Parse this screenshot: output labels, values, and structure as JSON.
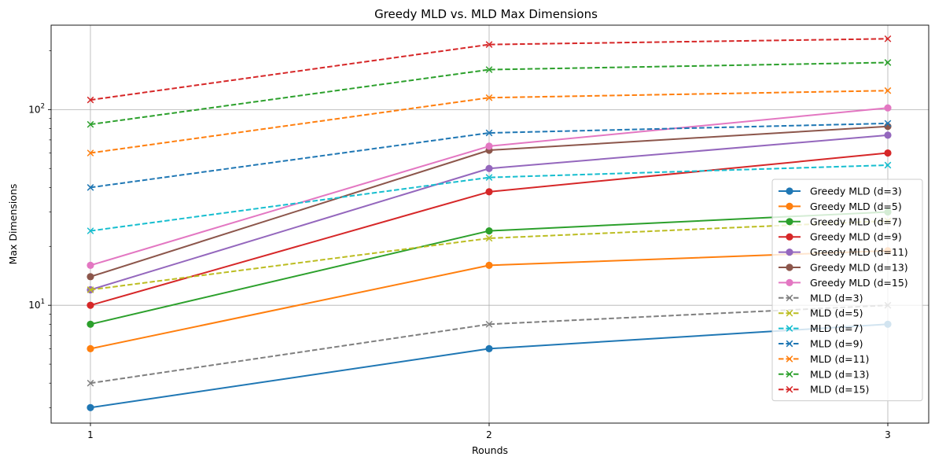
{
  "chart_data": {
    "type": "line",
    "title": "Greedy MLD vs. MLD Max Dimensions",
    "xlabel": "Rounds",
    "ylabel": "Max Dimensions",
    "x": [
      1,
      2,
      3
    ],
    "x_ticks": [
      "1",
      "2",
      "3"
    ],
    "y_scale": "log",
    "ylim": [
      2.5,
      270
    ],
    "y_ticks": [
      {
        "value": 10,
        "base": "10",
        "exp": "1"
      },
      {
        "value": 100,
        "base": "10",
        "exp": "2"
      }
    ],
    "grid": true,
    "legend_position": "right",
    "series": [
      {
        "name": "Greedy MLD (d=3)",
        "color": "#1f77b4",
        "marker": "circle",
        "style": "solid",
        "values": [
          3,
          6,
          8
        ]
      },
      {
        "name": "Greedy MLD (d=5)",
        "color": "#ff7f0e",
        "marker": "circle",
        "style": "solid",
        "values": [
          6,
          16,
          19
        ]
      },
      {
        "name": "Greedy MLD (d=7)",
        "color": "#2ca02c",
        "marker": "circle",
        "style": "solid",
        "values": [
          8,
          24,
          30
        ]
      },
      {
        "name": "Greedy MLD (d=9)",
        "color": "#d62728",
        "marker": "circle",
        "style": "solid",
        "values": [
          10,
          38,
          60
        ]
      },
      {
        "name": "Greedy MLD (d=11)",
        "color": "#9467bd",
        "marker": "circle",
        "style": "solid",
        "values": [
          12,
          50,
          74
        ]
      },
      {
        "name": "Greedy MLD (d=13)",
        "color": "#8c564b",
        "marker": "circle",
        "style": "solid",
        "values": [
          14,
          62,
          82
        ]
      },
      {
        "name": "Greedy MLD (d=15)",
        "color": "#e377c2",
        "marker": "circle",
        "style": "solid",
        "values": [
          16,
          65,
          102
        ]
      },
      {
        "name": "MLD (d=3)",
        "color": "#7f7f7f",
        "marker": "x",
        "style": "dashed",
        "values": [
          4,
          8,
          10
        ]
      },
      {
        "name": "MLD (d=5)",
        "color": "#bcbd22",
        "marker": "x",
        "style": "dashed",
        "values": [
          12,
          22,
          27
        ]
      },
      {
        "name": "MLD (d=7)",
        "color": "#17becf",
        "marker": "x",
        "style": "dashed",
        "values": [
          24,
          45,
          52
        ]
      },
      {
        "name": "MLD (d=9)",
        "color": "#1f77b4",
        "marker": "x",
        "style": "dashed",
        "values": [
          40,
          76,
          85
        ]
      },
      {
        "name": "MLD (d=11)",
        "color": "#ff7f0e",
        "marker": "x",
        "style": "dashed",
        "values": [
          60,
          115,
          125
        ]
      },
      {
        "name": "MLD (d=13)",
        "color": "#2ca02c",
        "marker": "x",
        "style": "dashed",
        "values": [
          84,
          160,
          174
        ]
      },
      {
        "name": "MLD (d=15)",
        "color": "#d62728",
        "marker": "x",
        "style": "dashed",
        "values": [
          112,
          215,
          230
        ]
      }
    ]
  }
}
